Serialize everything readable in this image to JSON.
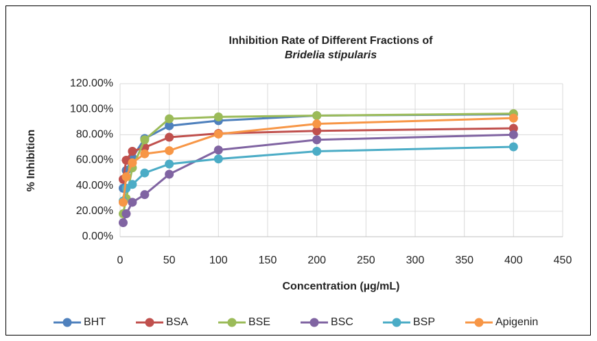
{
  "chart_data": {
    "type": "line",
    "title": "Inhibition Rate of Different Fractions of",
    "subtitle": "Bridelia stipularis",
    "x_label": "Concentration (µg/mL)",
    "y_label": "% Inhibition",
    "x": [
      3.125,
      6.25,
      12.5,
      25,
      50,
      100,
      200,
      400
    ],
    "series": [
      {
        "name": "BHT",
        "color": "#4f81bd",
        "values": [
          38,
          52,
          62,
          77,
          87,
          91,
          95,
          96
        ]
      },
      {
        "name": "BSA",
        "color": "#c0504d",
        "values": [
          45,
          60,
          67,
          70,
          78,
          81,
          83,
          85
        ]
      },
      {
        "name": "BSE",
        "color": "#9bbb59",
        "values": [
          18,
          30,
          54,
          76,
          92.5,
          94,
          95,
          96.5
        ]
      },
      {
        "name": "BSC",
        "color": "#8064a2",
        "values": [
          11,
          18,
          27,
          33,
          49,
          68,
          76,
          80
        ]
      },
      {
        "name": "BSP",
        "color": "#4bacc6",
        "values": [
          28,
          38,
          41,
          50,
          57,
          61,
          67,
          70.5
        ]
      },
      {
        "name": "Apigenin",
        "color": "#f79646",
        "values": [
          27,
          47,
          58,
          65,
          67.5,
          80.5,
          88.5,
          93
        ]
      }
    ],
    "xlim": [
      0,
      450
    ],
    "xticks": [
      0,
      50,
      100,
      150,
      200,
      250,
      300,
      350,
      400,
      450
    ],
    "ylim": [
      0,
      120
    ],
    "yticks": [
      {
        "value": 0,
        "label": "0.00%"
      },
      {
        "value": 20,
        "label": "20.00%"
      },
      {
        "value": 40,
        "label": "40.00%"
      },
      {
        "value": 60,
        "label": "60.00%"
      },
      {
        "value": 80,
        "label": "80.00%"
      },
      {
        "value": 100,
        "label": "100.00%"
      },
      {
        "value": 120,
        "label": "120.00%"
      }
    ],
    "grid": true,
    "legend": "bottom"
  }
}
